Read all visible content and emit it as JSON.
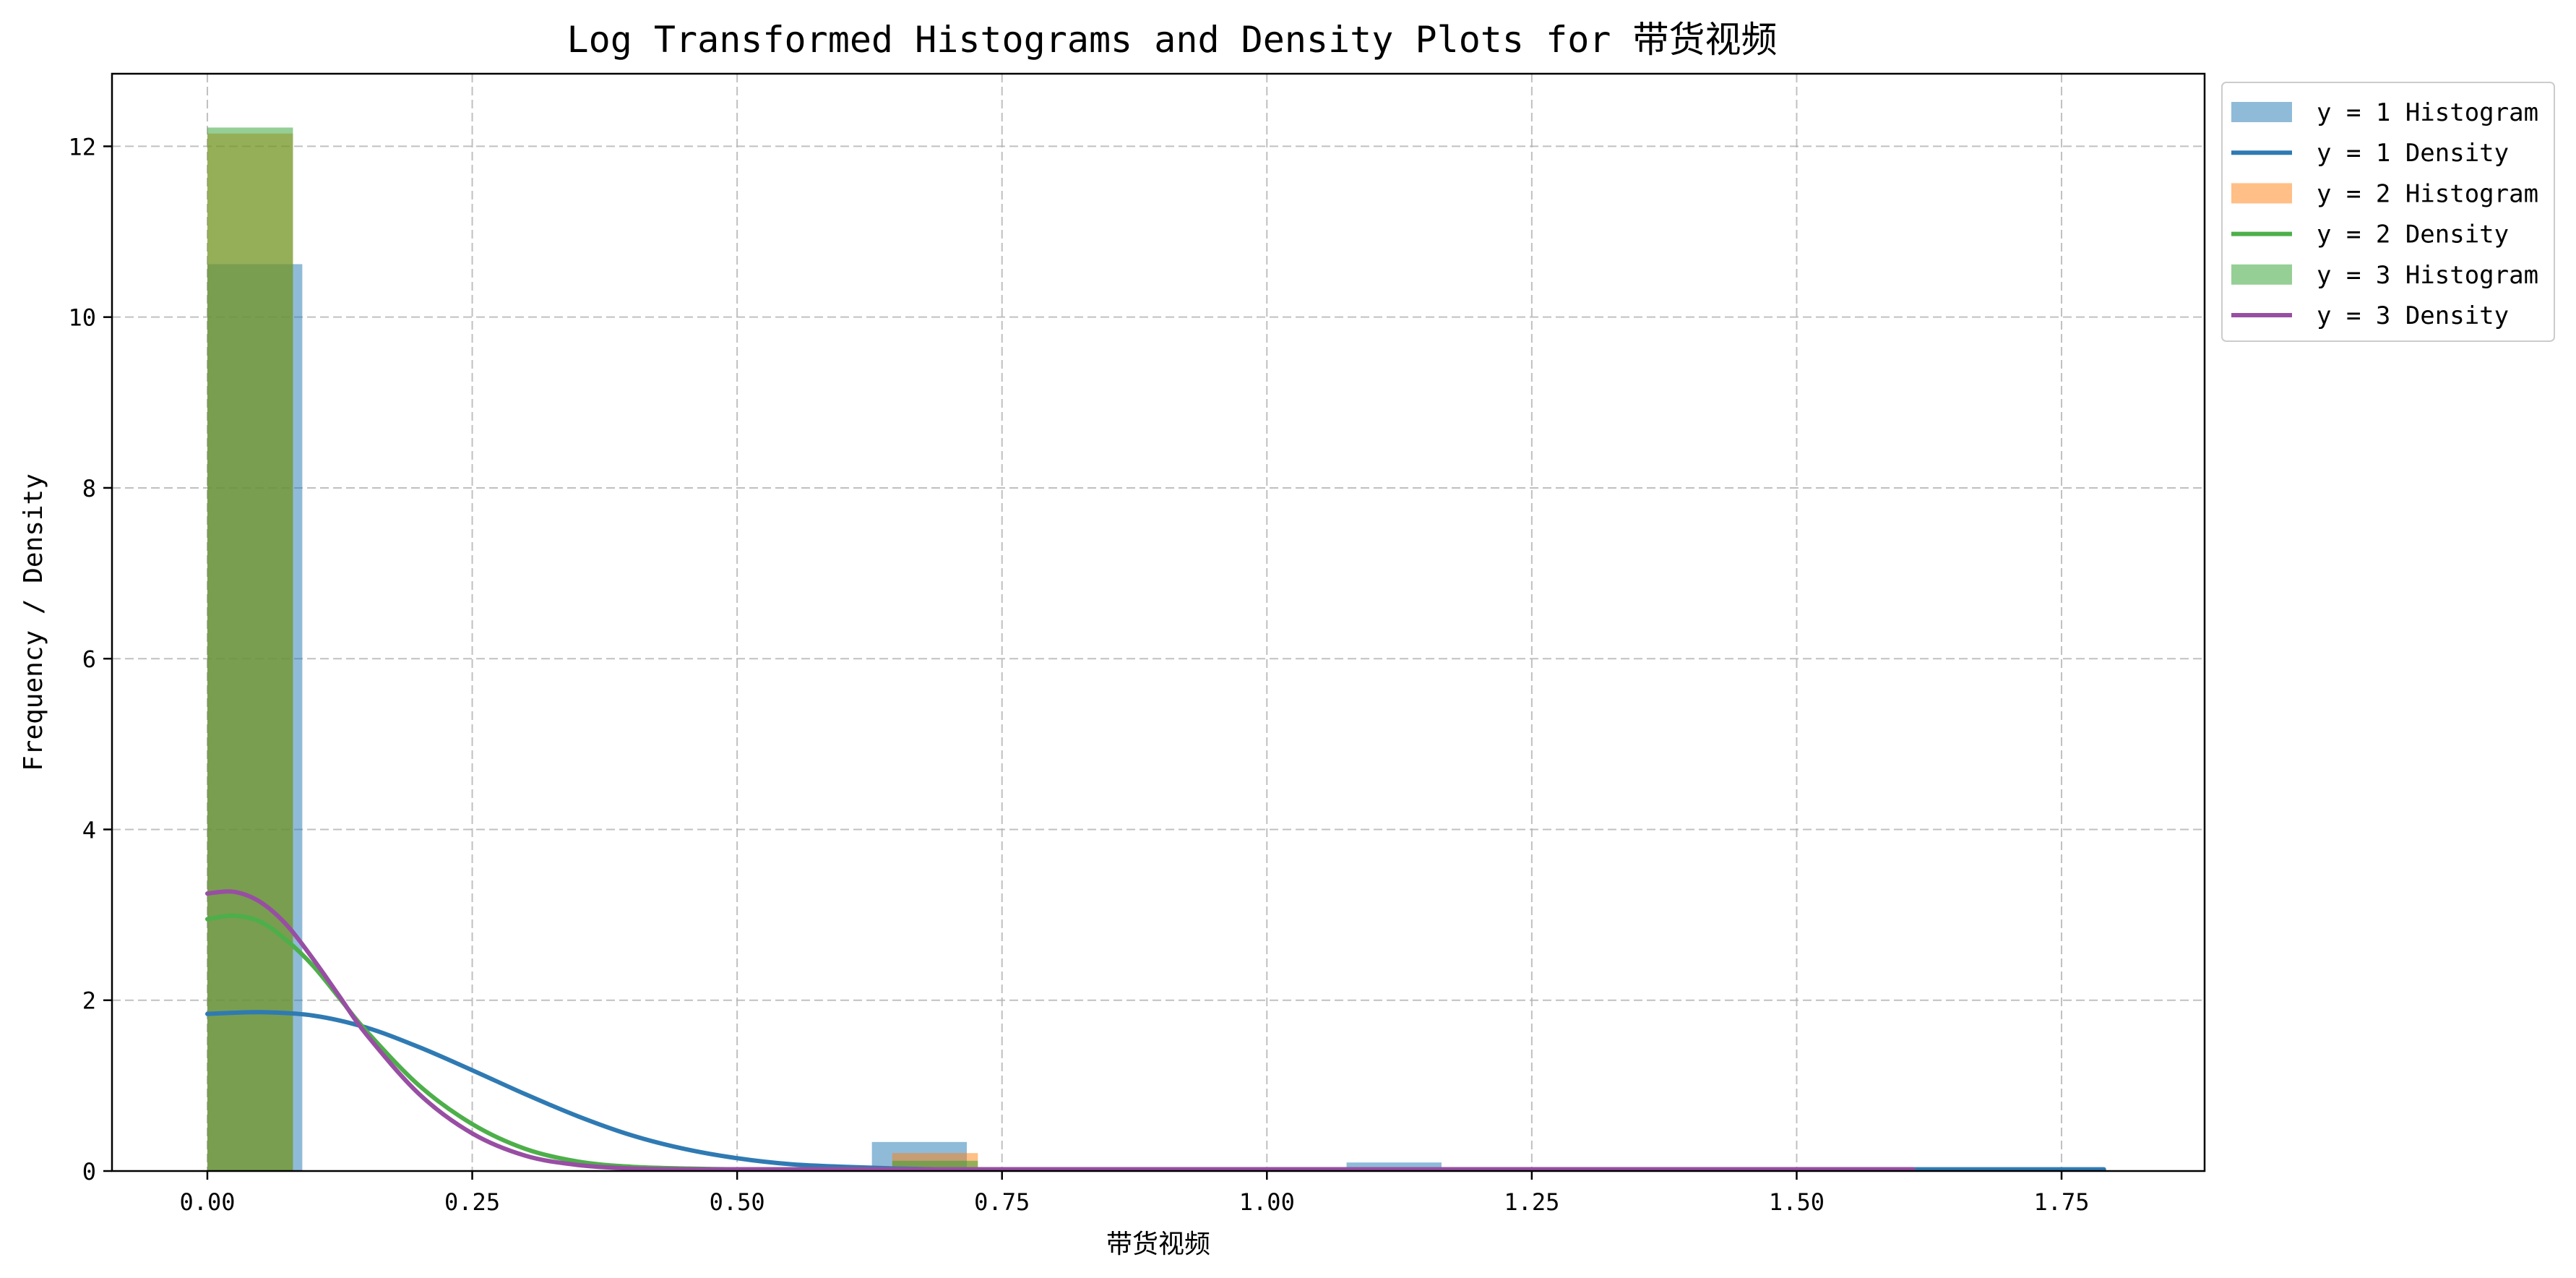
{
  "chart_data": {
    "type": "histogram+density",
    "title": "Log Transformed Histograms and Density Plots for 带货视频",
    "xlabel": "带货视频",
    "ylabel": "Frequency / Density",
    "xlim": [
      -0.09,
      1.885
    ],
    "ylim": [
      0,
      12.85
    ],
    "xticks": [
      0.0,
      0.25,
      0.5,
      0.75,
      1.0,
      1.25,
      1.5,
      1.75
    ],
    "xtick_labels": [
      "0.00",
      "0.25",
      "0.50",
      "0.75",
      "1.00",
      "1.25",
      "1.50",
      "1.75"
    ],
    "yticks": [
      0,
      2,
      4,
      6,
      8,
      10,
      12
    ],
    "ytick_labels": [
      "0",
      "2",
      "4",
      "6",
      "8",
      "10",
      "12"
    ],
    "grid": true,
    "legend_position": "outside-top-right",
    "legend": [
      {
        "label": "y = 1 Histogram",
        "kind": "patch",
        "color": "#1f77b4",
        "alpha": 0.5
      },
      {
        "label": "y = 1 Density",
        "kind": "line",
        "color": "#2f7ab3"
      },
      {
        "label": "y = 2 Histogram",
        "kind": "patch",
        "color": "#ff7f0e",
        "alpha": 0.5
      },
      {
        "label": "y = 2 Density",
        "kind": "line",
        "color": "#4daf4a"
      },
      {
        "label": "y = 3 Histogram",
        "kind": "patch",
        "color": "#2ca02c",
        "alpha": 0.5
      },
      {
        "label": "y = 3 Density",
        "kind": "line",
        "color": "#984ea3"
      }
    ],
    "histograms": [
      {
        "name": "y = 1 Histogram",
        "color": "#1f77b4",
        "alpha": 0.5,
        "bins": [
          {
            "x0": 0.0,
            "x1": 0.0896,
            "value": 10.62
          },
          {
            "x0": 0.6272,
            "x1": 0.7168,
            "value": 0.34
          },
          {
            "x0": 1.0752,
            "x1": 1.1648,
            "value": 0.1
          },
          {
            "x0": 1.344,
            "x1": 1.4336,
            "value": 0.04
          },
          {
            "x0": 1.6128,
            "x1": 1.7024,
            "value": 0.02
          },
          {
            "x0": 1.7024,
            "x1": 1.792,
            "value": 0.02
          }
        ]
      },
      {
        "name": "y = 2 Histogram",
        "color": "#ff7f0e",
        "alpha": 0.5,
        "bins": [
          {
            "x0": 0.0,
            "x1": 0.0808,
            "value": 12.15
          },
          {
            "x0": 0.6464,
            "x1": 0.7272,
            "value": 0.21
          }
        ]
      },
      {
        "name": "y = 3 Histogram",
        "color": "#2ca02c",
        "alpha": 0.5,
        "bins": [
          {
            "x0": 0.0,
            "x1": 0.0808,
            "value": 12.22
          },
          {
            "x0": 0.6464,
            "x1": 0.7272,
            "value": 0.12
          }
        ]
      }
    ],
    "densities": [
      {
        "name": "y = 1 Density",
        "color": "#2f7ab3",
        "x": [
          0.0,
          0.05,
          0.1,
          0.15,
          0.2,
          0.25,
          0.3,
          0.35,
          0.4,
          0.45,
          0.5,
          0.55,
          0.6,
          0.65,
          0.7,
          0.8,
          0.9,
          1.0,
          1.2,
          1.4,
          1.6,
          1.79
        ],
        "values": [
          1.84,
          1.86,
          1.82,
          1.68,
          1.45,
          1.18,
          0.9,
          0.64,
          0.42,
          0.26,
          0.15,
          0.08,
          0.05,
          0.03,
          0.02,
          0.02,
          0.02,
          0.02,
          0.02,
          0.02,
          0.02,
          0.02
        ]
      },
      {
        "name": "y = 2 Density",
        "color": "#4daf4a",
        "x": [
          0.0,
          0.025,
          0.05,
          0.075,
          0.1,
          0.125,
          0.15,
          0.2,
          0.25,
          0.3,
          0.35,
          0.4,
          0.45,
          0.5,
          0.6,
          0.7,
          0.8,
          0.9,
          1.0,
          1.2,
          1.4,
          1.61
        ],
        "values": [
          2.95,
          2.99,
          2.92,
          2.7,
          2.4,
          2.02,
          1.64,
          1.0,
          0.55,
          0.26,
          0.11,
          0.05,
          0.03,
          0.02,
          0.02,
          0.02,
          0.02,
          0.02,
          0.02,
          0.02,
          0.02,
          0.02
        ]
      },
      {
        "name": "y = 3 Density",
        "color": "#984ea3",
        "x": [
          0.0,
          0.025,
          0.05,
          0.075,
          0.1,
          0.125,
          0.15,
          0.2,
          0.25,
          0.3,
          0.35,
          0.4,
          0.45,
          0.5,
          0.6,
          0.7,
          0.8,
          0.9,
          1.0,
          1.2,
          1.4,
          1.61
        ],
        "values": [
          3.25,
          3.27,
          3.15,
          2.88,
          2.48,
          2.04,
          1.6,
          0.9,
          0.44,
          0.18,
          0.07,
          0.03,
          0.02,
          0.02,
          0.02,
          0.02,
          0.02,
          0.02,
          0.02,
          0.02,
          0.02,
          0.02
        ]
      }
    ]
  }
}
